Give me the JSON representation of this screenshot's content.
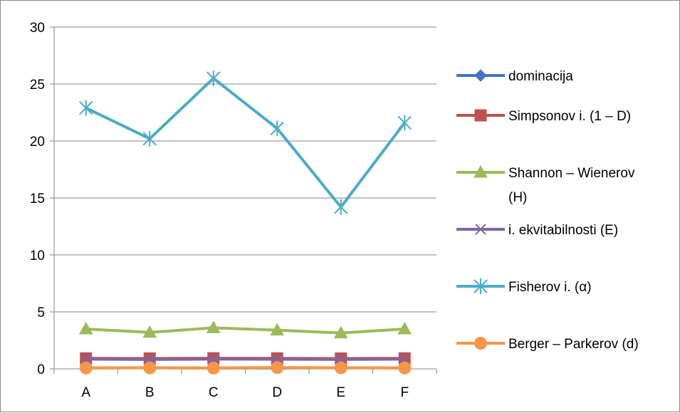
{
  "chart_data": {
    "type": "line",
    "categories": [
      "A",
      "B",
      "C",
      "D",
      "E",
      "F"
    ],
    "ylim": [
      0,
      30
    ],
    "yticks": [
      "0",
      "5",
      "10",
      "15",
      "20",
      "25",
      "30"
    ],
    "grid": true,
    "legend_position": "right",
    "series": [
      {
        "name": "dominacija",
        "color": "#4472C4",
        "marker": "diamond",
        "values": [
          0.08,
          0.09,
          0.07,
          0.08,
          0.09,
          0.08
        ]
      },
      {
        "name": "Simpsonov i. (1 – D)",
        "color": "#C0504D",
        "marker": "square",
        "values": [
          0.92,
          0.91,
          0.93,
          0.92,
          0.91,
          0.92
        ]
      },
      {
        "name": "Shannon – Wienerov (H)",
        "name_lines": [
          "Shannon – Wienerov",
          "(H)"
        ],
        "color": "#9BBB59",
        "marker": "triangle",
        "values": [
          3.5,
          3.2,
          3.6,
          3.4,
          3.15,
          3.5
        ]
      },
      {
        "name": "i. ekvitabilnosti (E)",
        "color": "#8064A2",
        "marker": "x",
        "values": [
          0.85,
          0.82,
          0.86,
          0.84,
          0.83,
          0.85
        ]
      },
      {
        "name": "Fisherov i. (α)",
        "color": "#4BACC6",
        "marker": "star",
        "values": [
          22.9,
          20.2,
          25.5,
          21.1,
          14.2,
          21.6
        ]
      },
      {
        "name": "Berger – Parkerov (d)",
        "color": "#F79646",
        "marker": "circle",
        "values": [
          0.08,
          0.09,
          0.07,
          0.12,
          0.09,
          0.08
        ]
      }
    ]
  }
}
